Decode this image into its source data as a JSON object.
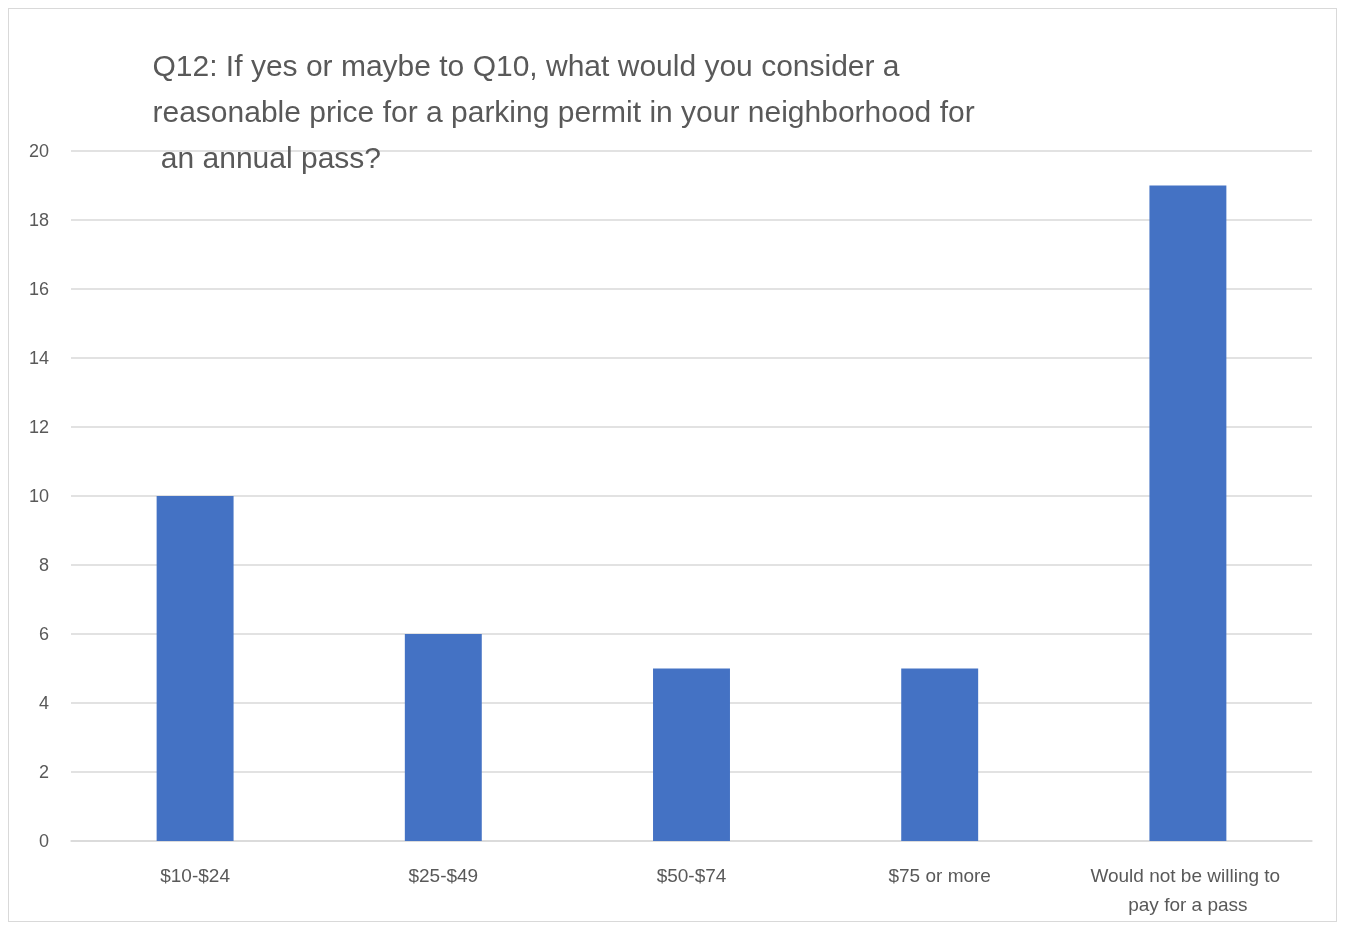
{
  "chart_data": {
    "type": "bar",
    "title": "Q12: If yes or maybe to Q10, what would you consider a reasonable price for a parking permit in your neighborhood for an annual pass?",
    "categories": [
      "$10-$24",
      "$25-$49",
      "$50-$74",
      "$75 or more",
      "Would not be willing to pay for a pass"
    ],
    "values": [
      10,
      6,
      5,
      5,
      19
    ],
    "color": "#4472c4",
    "ylim": [
      0,
      20
    ],
    "yticks": [
      0,
      2,
      4,
      6,
      8,
      10,
      12,
      14,
      16,
      18,
      20
    ],
    "grid": "y"
  }
}
